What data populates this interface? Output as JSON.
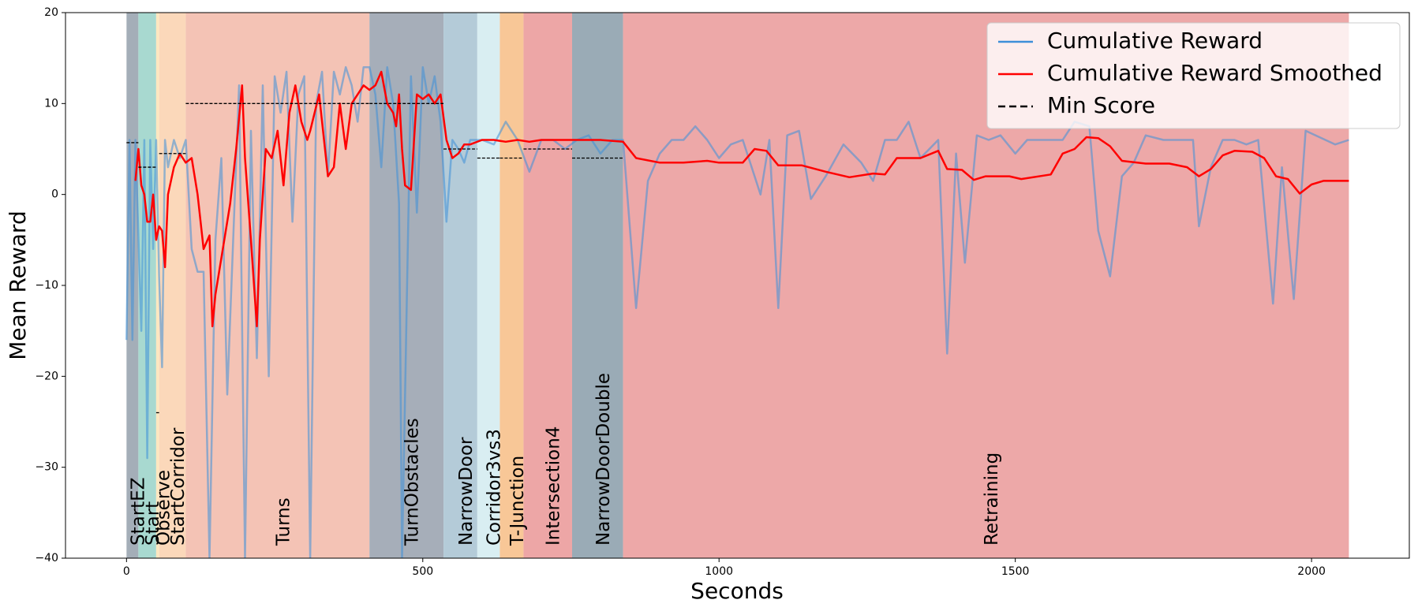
{
  "chart_data": {
    "type": "line",
    "x_label": "Seconds",
    "y_label": "Mean Reward",
    "xlim": [
      -103,
      2165
    ],
    "ylim": [
      -40,
      20
    ],
    "xticks": [
      0,
      500,
      1000,
      1500,
      2000
    ],
    "yticks": [
      -40,
      -30,
      -20,
      -10,
      0,
      10,
      20
    ],
    "legend": "upper right",
    "phases": [
      {
        "label": "StartEZ",
        "start": 0,
        "end": 20,
        "color": "#a4aeb8",
        "min_score": 5.7
      },
      {
        "label": "Start",
        "start": 20,
        "end": 50,
        "color": "#a8d9d0",
        "min_score": 3
      },
      {
        "label": "Observe",
        "start": 50,
        "end": 55,
        "color": "#fde7c0",
        "min_score": -24
      },
      {
        "label": "StartCorridor",
        "start": 55,
        "end": 100,
        "color": "#fbd8ba",
        "min_score": 4.5
      },
      {
        "label": "Turns",
        "start": 100,
        "end": 410,
        "color": "#f4c3b5",
        "min_score": 10
      },
      {
        "label": "TurnObstacles",
        "start": 410,
        "end": 535,
        "color": "#a6aeb9",
        "min_score": 10
      },
      {
        "label": "NarrowDoor",
        "start": 535,
        "end": 592,
        "color": "#b4cbd8",
        "min_score": 5
      },
      {
        "label": "Corridor3vs3",
        "start": 592,
        "end": 630,
        "color": "#d9eef2",
        "min_score": 4
      },
      {
        "label": "T-Junction",
        "start": 630,
        "end": 670,
        "color": "#f8c797",
        "min_score": 4
      },
      {
        "label": "Intersection4",
        "start": 670,
        "end": 752,
        "color": "#eda6a6",
        "min_score": 5
      },
      {
        "label": "NarrowDoorDouble",
        "start": 752,
        "end": 838,
        "color": "#9aabb6",
        "min_score": 4
      },
      {
        "label": "Retraining",
        "start": 838,
        "end": 2063,
        "color": "#eda8a8"
      }
    ],
    "min_score_name": "Min Score",
    "min_score_color": "#000000",
    "series": [
      {
        "name": "Cumulative Reward",
        "color": "#3d8fd9",
        "x": [
          0,
          5,
          10,
          15,
          25,
          30,
          35,
          40,
          45,
          50,
          55,
          60,
          65,
          70,
          80,
          90,
          100,
          110,
          120,
          130,
          140,
          150,
          160,
          170,
          180,
          190,
          200,
          210,
          220,
          230,
          240,
          250,
          260,
          270,
          280,
          290,
          300,
          310,
          320,
          330,
          340,
          350,
          360,
          370,
          380,
          390,
          400,
          410,
          420,
          430,
          440,
          450,
          460,
          465,
          480,
          490,
          500,
          510,
          520,
          530,
          540,
          550,
          560,
          570,
          580,
          600,
          620,
          640,
          660,
          680,
          700,
          720,
          740,
          760,
          780,
          800,
          820,
          838,
          860,
          880,
          900,
          920,
          940,
          960,
          980,
          1000,
          1020,
          1040,
          1060,
          1070,
          1085,
          1100,
          1115,
          1135,
          1155,
          1180,
          1210,
          1240,
          1260,
          1280,
          1300,
          1320,
          1340,
          1370,
          1385,
          1400,
          1415,
          1435,
          1455,
          1475,
          1500,
          1520,
          1560,
          1580,
          1600,
          1625,
          1640,
          1660,
          1680,
          1700,
          1720,
          1750,
          1800,
          1810,
          1830,
          1850,
          1870,
          1890,
          1910,
          1935,
          1950,
          1970,
          1990,
          2040,
          2063
        ],
        "values": [
          -16,
          6,
          -16,
          6,
          -15,
          6,
          -29,
          6,
          -6,
          6,
          -9,
          -19,
          6,
          3,
          6,
          4,
          6,
          -6,
          -8.5,
          -8.5,
          -40,
          -5,
          4,
          -22,
          -5,
          12,
          -40,
          7,
          -18,
          12,
          -20,
          13,
          9,
          13.5,
          -3,
          11,
          13,
          -40,
          10,
          13.5,
          2,
          13.5,
          11,
          14,
          12,
          8,
          14,
          14,
          11,
          3,
          14,
          10,
          -1,
          -40,
          13,
          -2,
          14,
          10,
          13,
          8,
          -3,
          6,
          5,
          3.5,
          6,
          6,
          5.5,
          8,
          6,
          2.5,
          6,
          6,
          5,
          6,
          6.5,
          4.5,
          6,
          6,
          -12.5,
          1.5,
          4.5,
          6,
          6,
          7.5,
          6,
          4,
          5.5,
          6,
          2,
          0,
          6,
          -12.5,
          6.5,
          7,
          -0.5,
          2,
          5.5,
          3.5,
          1.5,
          6,
          6,
          8,
          4,
          6,
          -17.5,
          4.5,
          -7.5,
          6.5,
          6,
          6.5,
          4.5,
          6,
          6,
          6,
          8,
          7.5,
          -4,
          -9,
          2,
          3.5,
          6.5,
          6,
          6,
          -3.5,
          3,
          6,
          6,
          5.5,
          6,
          -12,
          3,
          -11.5,
          7,
          5.5,
          6
        ]
      },
      {
        "name": "Cumulative Reward Smoothed",
        "color": "#ff0000",
        "x": [
          15,
          20,
          25,
          30,
          35,
          40,
          45,
          50,
          55,
          60,
          65,
          70,
          80,
          90,
          100,
          110,
          120,
          130,
          140,
          145,
          150,
          160,
          175,
          185,
          195,
          200,
          210,
          220,
          225,
          235,
          245,
          255,
          265,
          275,
          285,
          295,
          305,
          310,
          325,
          340,
          350,
          360,
          370,
          380,
          390,
          400,
          410,
          420,
          430,
          440,
          450,
          455,
          460,
          465,
          470,
          480,
          490,
          500,
          510,
          520,
          530,
          540,
          550,
          560,
          570,
          580,
          600,
          620,
          640,
          660,
          680,
          700,
          740,
          760,
          780,
          800,
          838,
          860,
          900,
          940,
          980,
          1000,
          1040,
          1060,
          1080,
          1100,
          1140,
          1180,
          1220,
          1260,
          1280,
          1300,
          1340,
          1370,
          1385,
          1410,
          1430,
          1450,
          1490,
          1510,
          1560,
          1580,
          1600,
          1620,
          1640,
          1660,
          1680,
          1720,
          1760,
          1790,
          1810,
          1830,
          1850,
          1870,
          1900,
          1920,
          1940,
          1960,
          1980,
          2000,
          2020,
          2063
        ],
        "values": [
          1.5,
          5,
          1,
          0,
          -3,
          -3,
          0,
          -5,
          -3.5,
          -4,
          -8,
          0,
          3,
          4.5,
          3.5,
          4,
          0,
          -6,
          -4.5,
          -14.5,
          -11,
          -7,
          -1,
          5,
          12,
          4,
          -5,
          -14.5,
          -5,
          5,
          4,
          7,
          1,
          9,
          12,
          8,
          6,
          7,
          11,
          2,
          3,
          10,
          5,
          10,
          11,
          12,
          11.5,
          12,
          13.5,
          10,
          9,
          7.5,
          11,
          5,
          1,
          0.5,
          11,
          10.5,
          11,
          10,
          11,
          6,
          4,
          4.5,
          5.5,
          5.5,
          6,
          6,
          5.8,
          6,
          5.8,
          6,
          6,
          6,
          6,
          6,
          5.8,
          4,
          3.5,
          3.5,
          3.7,
          3.5,
          3.5,
          5,
          4.8,
          3.2,
          3.2,
          2.5,
          1.9,
          2.3,
          2.2,
          4,
          4,
          4.8,
          2.8,
          2.7,
          1.6,
          2,
          2,
          1.7,
          2.2,
          4.5,
          5,
          6.3,
          6.2,
          5.3,
          3.7,
          3.4,
          3.4,
          3,
          2,
          2.8,
          4.3,
          4.8,
          4.7,
          4,
          2,
          1.7,
          0.1,
          1.1,
          1.5,
          1.5
        ]
      }
    ]
  }
}
